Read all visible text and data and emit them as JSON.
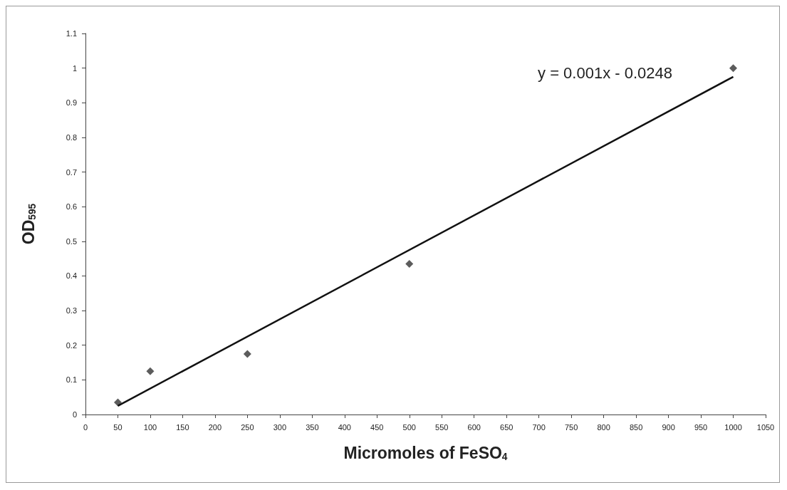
{
  "chart_data": {
    "type": "scatter",
    "xlabel": "Micromoles of FeSO$_{4}$",
    "ylabel": "OD$_{595}$",
    "annotations": [
      "y = 0.001x - 0.0248"
    ],
    "series": [
      {
        "color": "#333333",
        "marker": "diamond",
        "x": [
          50,
          100,
          250,
          500,
          1000
        ],
        "values": [
          0.035,
          0.125,
          0.175,
          0.435,
          1.0
        ]
      },
      {
        "type": "line",
        "color": "#111111",
        "marker": "none",
        "x": [
          50,
          1000
        ],
        "values": [
          0.025,
          0.975
        ]
      }
    ],
    "xlim": [
      0,
      1050
    ],
    "xticks": [
      0,
      50,
      100,
      150,
      200,
      250,
      300,
      350,
      400,
      450,
      500,
      550,
      600,
      650,
      700,
      750,
      800,
      850,
      900,
      950,
      1000,
      1050
    ],
    "ylim": [
      0,
      1.1
    ],
    "yticks": [
      0,
      0.1,
      0.2,
      0.3,
      0.4,
      0.5,
      0.6,
      0.7,
      0.8,
      0.9,
      1,
      1.1
    ]
  }
}
